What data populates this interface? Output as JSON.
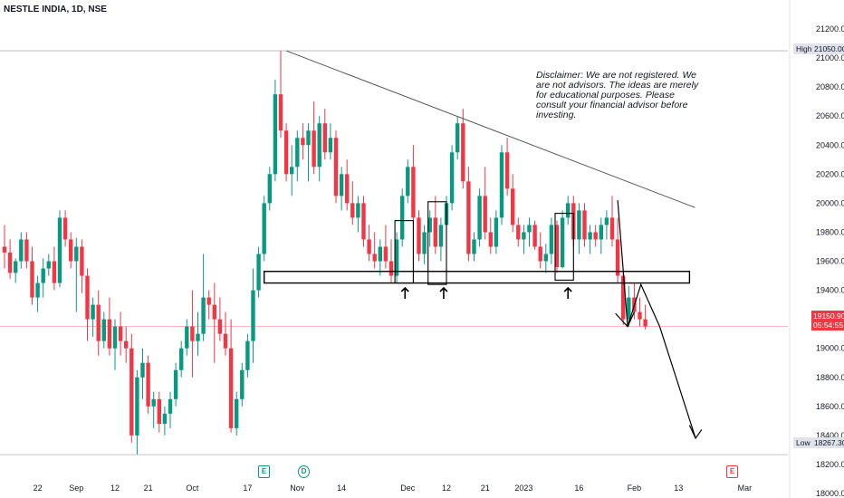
{
  "header": {
    "symbol_label": "NESTLE INDIA, 1D, NSE"
  },
  "disclaimer": "Disclaimer: We are not registered. We are not advisors. The ideas are merely for educational purposes. Please consult your financial advisor before investing.",
  "price_scale": {
    "high_label": "High",
    "high_value": "21050.00",
    "low_label": "Low",
    "low_value": "18267.30",
    "last_price": "19150.90",
    "countdown": "05:54:55"
  },
  "events": [
    {
      "icon": "earnings-icon",
      "glyph": "E"
    },
    {
      "icon": "dividend-icon",
      "glyph": "D"
    },
    {
      "icon": "earnings-upcoming-icon",
      "glyph": "E"
    }
  ],
  "colors": {
    "up": "#089981",
    "down": "#f23645",
    "trendline": "#555555",
    "annotation": "#000000"
  },
  "chart_data": {
    "type": "candlestick",
    "title": "NESTLE INDIA, 1D, NSE",
    "ylim": [
      18000,
      21300
    ],
    "y_ticks": [
      "21200.00",
      "21000.00",
      "20800.00",
      "20600.00",
      "20400.00",
      "20200.00",
      "20000.00",
      "19800.00",
      "19600.00",
      "19400.00",
      "19200.00",
      "19000.00",
      "18800.00",
      "18600.00",
      "18400.00",
      "18200.00",
      "18000.00"
    ],
    "y_tick_values": [
      21200,
      21000,
      20800,
      20600,
      20400,
      20200,
      20000,
      19800,
      19600,
      19400,
      19200,
      19000,
      18800,
      18600,
      18400,
      18200,
      18000
    ],
    "x_ticks": [
      "22",
      "Sep",
      "12",
      "21",
      "Oct",
      "17",
      "Nov",
      "14",
      "Dec",
      "12",
      "21",
      "2023",
      "16",
      "Feb",
      "13",
      "Mar"
    ],
    "x_tick_bars": [
      6,
      13,
      20,
      26,
      34,
      44,
      53,
      61,
      73,
      80,
      87,
      94,
      104,
      114,
      122,
      134
    ],
    "highest_high": 21050,
    "lowest_low": 18267.3,
    "last_close": 19150.9,
    "bars": [
      [
        19700,
        19850,
        19550,
        19660
      ],
      [
        19660,
        19750,
        19480,
        19520
      ],
      [
        19520,
        19620,
        19450,
        19600
      ],
      [
        19600,
        19800,
        19550,
        19750
      ],
      [
        19750,
        19800,
        19550,
        19600
      ],
      [
        19600,
        19700,
        19300,
        19350
      ],
      [
        19350,
        19500,
        19250,
        19450
      ],
      [
        19450,
        19620,
        19350,
        19550
      ],
      [
        19550,
        19650,
        19500,
        19600
      ],
      [
        19600,
        19700,
        19400,
        19450
      ],
      [
        19450,
        19950,
        19420,
        19900
      ],
      [
        19900,
        19950,
        19700,
        19750
      ],
      [
        19750,
        19800,
        19550,
        19600
      ],
      [
        19600,
        19760,
        19250,
        19700
      ],
      [
        19700,
        19750,
        19380,
        19500
      ],
      [
        19500,
        19550,
        19050,
        19200
      ],
      [
        19200,
        19350,
        19080,
        19300
      ],
      [
        19300,
        19400,
        18950,
        19050
      ],
      [
        19050,
        19250,
        19000,
        19200
      ],
      [
        19200,
        19350,
        18950,
        19000
      ],
      [
        19000,
        19200,
        18850,
        19150
      ],
      [
        19150,
        19250,
        18950,
        19050
      ],
      [
        19050,
        19150,
        18900,
        19000
      ],
      [
        19000,
        19100,
        18350,
        18400
      ],
      [
        18400,
        18850,
        18270,
        18800
      ],
      [
        18800,
        19000,
        18650,
        18900
      ],
      [
        18900,
        18950,
        18550,
        18600
      ],
      [
        18600,
        18700,
        18450,
        18650
      ],
      [
        18650,
        18700,
        18420,
        18480
      ],
      [
        18480,
        18600,
        18400,
        18550
      ],
      [
        18550,
        18700,
        18450,
        18650
      ],
      [
        18650,
        18900,
        18600,
        18850
      ],
      [
        18850,
        19050,
        18800,
        19000
      ],
      [
        19000,
        19200,
        18950,
        19150
      ],
      [
        19150,
        19400,
        18800,
        19050
      ],
      [
        19050,
        19250,
        18950,
        19100
      ],
      [
        19100,
        19650,
        19050,
        19350
      ],
      [
        19350,
        19400,
        19200,
        19300
      ],
      [
        19300,
        19450,
        18900,
        19200
      ],
      [
        19200,
        19350,
        19050,
        19100
      ],
      [
        19100,
        19250,
        18950,
        19000
      ],
      [
        19000,
        19200,
        18420,
        18450
      ],
      [
        18450,
        18700,
        18400,
        18650
      ],
      [
        18650,
        18900,
        18600,
        18850
      ],
      [
        18850,
        19100,
        18800,
        19050
      ],
      [
        19050,
        19550,
        18900,
        19400
      ],
      [
        19400,
        19700,
        19350,
        19650
      ],
      [
        19650,
        20050,
        19600,
        20000
      ],
      [
        20000,
        20250,
        19950,
        20200
      ],
      [
        20200,
        20850,
        20150,
        20750
      ],
      [
        20750,
        21050,
        20450,
        20500
      ],
      [
        20500,
        20550,
        20150,
        20200
      ],
      [
        20200,
        20400,
        20050,
        20250
      ],
      [
        20250,
        20500,
        20150,
        20450
      ],
      [
        20450,
        20550,
        20300,
        20400
      ],
      [
        20400,
        20550,
        20150,
        20500
      ],
      [
        20500,
        20700,
        20200,
        20250
      ],
      [
        20250,
        20600,
        20150,
        20550
      ],
      [
        20550,
        20650,
        20300,
        20350
      ],
      [
        20350,
        20550,
        20300,
        20450
      ],
      [
        20450,
        20500,
        20000,
        20050
      ],
      [
        20050,
        20250,
        19950,
        20200
      ],
      [
        20200,
        20300,
        19950,
        20000
      ],
      [
        20000,
        20150,
        19850,
        19900
      ],
      [
        19900,
        20050,
        19800,
        20000
      ],
      [
        20000,
        20050,
        19700,
        19750
      ],
      [
        19750,
        19850,
        19600,
        19650
      ],
      [
        19650,
        19800,
        19550,
        19600
      ],
      [
        19600,
        19750,
        19500,
        19700
      ],
      [
        19700,
        19850,
        19550,
        19600
      ],
      [
        19600,
        19750,
        19450,
        19500
      ],
      [
        19500,
        19800,
        19450,
        19750
      ],
      [
        19750,
        20100,
        19700,
        20050
      ],
      [
        20050,
        20300,
        20000,
        20250
      ],
      [
        20250,
        20400,
        19850,
        19900
      ],
      [
        19900,
        19950,
        19600,
        19650
      ],
      [
        19650,
        19850,
        19580,
        19800
      ],
      [
        19800,
        19950,
        19700,
        19900
      ],
      [
        19900,
        20050,
        19650,
        19700
      ],
      [
        19700,
        19900,
        19600,
        19850
      ],
      [
        19850,
        20050,
        19800,
        20000
      ],
      [
        20000,
        20400,
        19950,
        20350
      ],
      [
        20350,
        20600,
        20300,
        20550
      ],
      [
        20550,
        20650,
        20100,
        20150
      ],
      [
        20150,
        20250,
        19600,
        19650
      ],
      [
        19650,
        19800,
        19600,
        19750
      ],
      [
        19750,
        20100,
        19700,
        20050
      ],
      [
        20050,
        20250,
        19750,
        19800
      ],
      [
        19800,
        19900,
        19650,
        19700
      ],
      [
        19700,
        19950,
        19650,
        19900
      ],
      [
        19900,
        20400,
        19850,
        20350
      ],
      [
        20350,
        20450,
        20050,
        20100
      ],
      [
        20100,
        20200,
        19800,
        19850
      ],
      [
        19850,
        19900,
        19700,
        19750
      ],
      [
        19750,
        19850,
        19650,
        19800
      ],
      [
        19800,
        19900,
        19700,
        19850
      ],
      [
        19850,
        19880,
        19680,
        19700
      ],
      [
        19700,
        19800,
        19550,
        19600
      ],
      [
        19600,
        19720,
        19520,
        19650
      ],
      [
        19650,
        19900,
        19580,
        19850
      ],
      [
        19850,
        19880,
        19520,
        19560
      ],
      [
        19560,
        19950,
        19550,
        19900
      ],
      [
        19900,
        20050,
        19850,
        20000
      ],
      [
        20000,
        20050,
        19700,
        19750
      ],
      [
        19750,
        20000,
        19650,
        19950
      ],
      [
        19950,
        20000,
        19700,
        19750
      ],
      [
        19750,
        19850,
        19650,
        19800
      ],
      [
        19800,
        19850,
        19700,
        19750
      ],
      [
        19750,
        19900,
        19650,
        19850
      ],
      [
        19850,
        19950,
        19750,
        19900
      ],
      [
        19900,
        20050,
        19700,
        19750
      ],
      [
        19750,
        19900,
        19450,
        19500
      ],
      [
        19500,
        19520,
        19160,
        19200
      ],
      [
        19200,
        19430,
        19150,
        19350
      ],
      [
        19350,
        19450,
        19200,
        19250
      ],
      [
        19250,
        19350,
        19150,
        19200
      ],
      [
        19200,
        19300,
        19130,
        19150
      ]
    ]
  }
}
